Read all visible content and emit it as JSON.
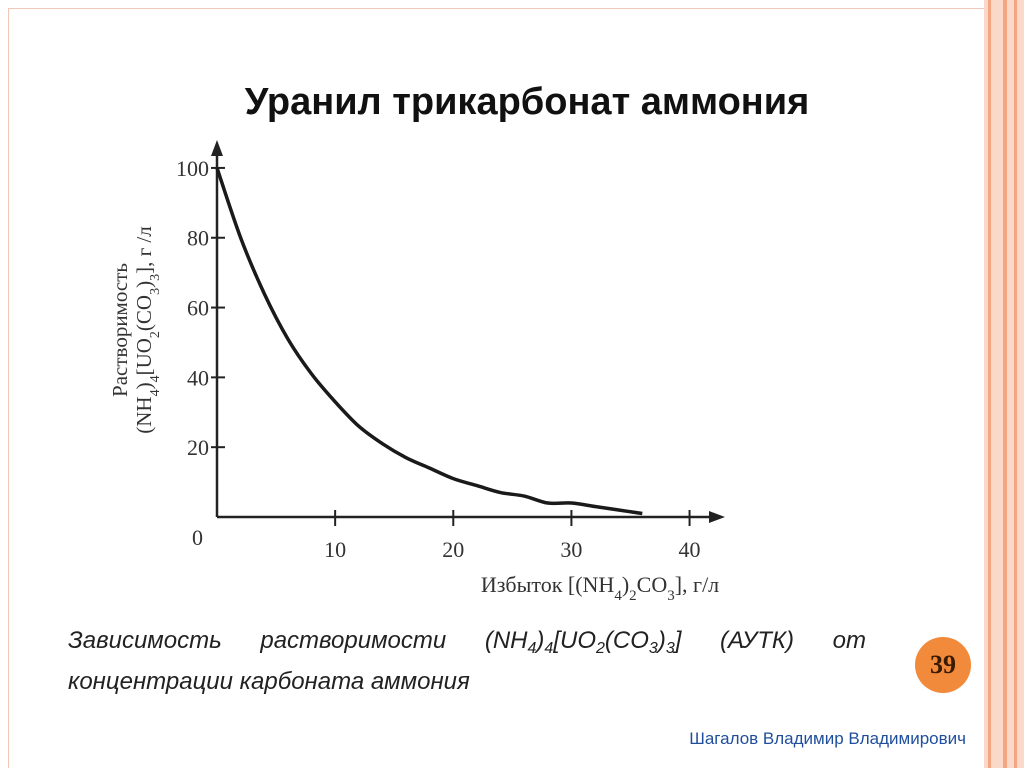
{
  "chart_data": {
    "type": "line",
    "title": "Уранил трикарбонат аммония",
    "ylabel": {
      "line1": "Растворимость",
      "line2": [
        "(NH",
        "4",
        ")",
        "4",
        "[UO",
        "2",
        "(CO",
        "3",
        ")",
        "3",
        "], г /л"
      ]
    },
    "xlabel": [
      "Избыток [(NH",
      "4",
      ")",
      "2",
      "CO",
      "3",
      "], г/л"
    ],
    "x": [
      0,
      2,
      4,
      6,
      8,
      10,
      12,
      14,
      16,
      18,
      20,
      22,
      24,
      26,
      28,
      30,
      32,
      34,
      36
    ],
    "values": [
      100,
      80,
      64,
      51,
      41,
      33,
      26,
      21,
      17,
      14,
      11,
      9,
      7,
      6,
      4,
      4,
      3,
      2,
      1
    ],
    "color": "#1a1a1a",
    "xlim": [
      0,
      43
    ],
    "ylim": [
      0,
      108
    ],
    "xticks": [
      10,
      20,
      30,
      40
    ],
    "yticks": [
      0,
      20,
      40,
      60,
      80,
      100
    ]
  },
  "slide": {
    "caption": [
      "Зависимость растворимости (NH",
      "4",
      ")",
      "4",
      "[UO",
      "2",
      "(CO",
      "3",
      ")",
      "3",
      "] (АУТК) от концентрации карбоната аммония"
    ],
    "page_number": "39",
    "author": "Шагалов Владимир Владимирович"
  }
}
